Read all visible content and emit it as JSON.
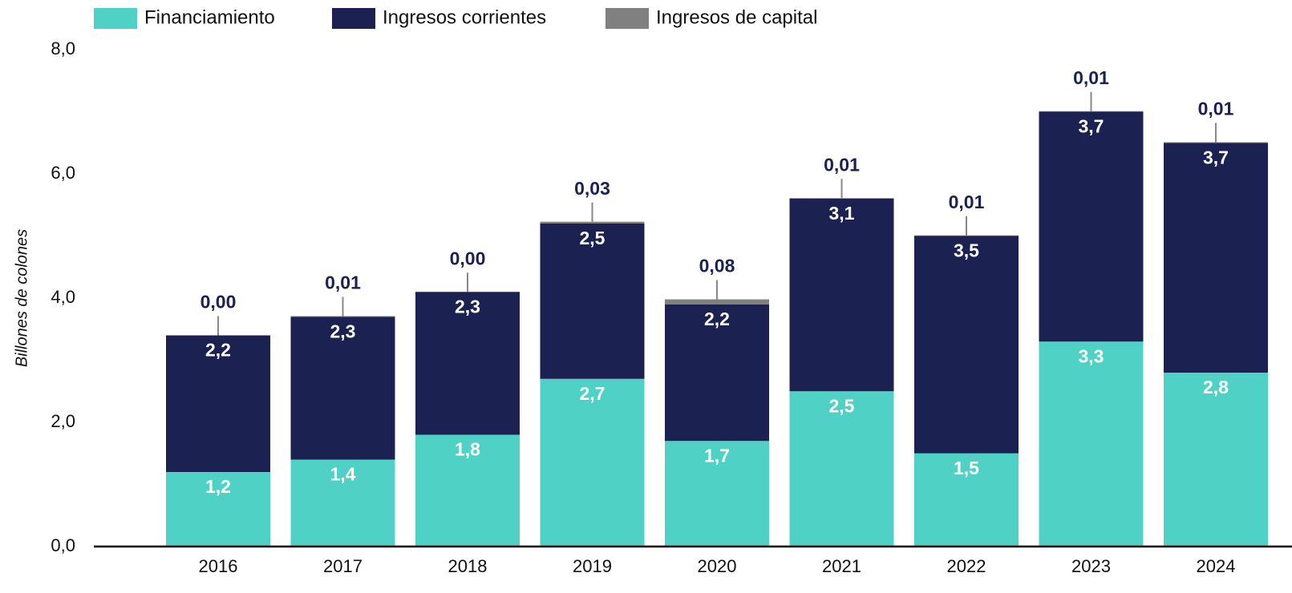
{
  "chart_data": {
    "type": "stacked_bar",
    "y_label": "Billones de colones",
    "categories": [
      "2016",
      "2017",
      "2018",
      "2019",
      "2020",
      "2021",
      "2022",
      "2023",
      "2024"
    ],
    "series": [
      {
        "name": "Financiamiento",
        "color": "#4fd1c5",
        "values": [
          1.2,
          1.4,
          1.8,
          2.7,
          1.7,
          2.5,
          1.5,
          3.3,
          2.8
        ],
        "value_labels": [
          "1,2",
          "1,4",
          "1,8",
          "2,7",
          "1,7",
          "2,5",
          "1,5",
          "3,3",
          "2,8"
        ]
      },
      {
        "name": "Ingresos corrientes",
        "color": "#1b2150",
        "values": [
          2.2,
          2.3,
          2.3,
          2.5,
          2.2,
          3.1,
          3.5,
          3.7,
          3.7
        ],
        "value_labels": [
          "2,2",
          "2,3",
          "2,3",
          "2,5",
          "2,2",
          "3,1",
          "3,5",
          "3,7",
          "3,7"
        ]
      },
      {
        "name": "Ingresos de capital",
        "color": "#808080",
        "values": [
          0.0,
          0.01,
          0.0,
          0.03,
          0.08,
          0.01,
          0.01,
          0.01,
          0.01
        ],
        "value_labels": [
          "0,00",
          "0,01",
          "0,00",
          "0,03",
          "0,08",
          "0,01",
          "0,01",
          "0,01",
          "0,01"
        ]
      }
    ],
    "ylim": [
      0,
      8
    ],
    "yticks": [
      {
        "value": 0,
        "label": "0,0"
      },
      {
        "value": 2,
        "label": "2,0"
      },
      {
        "value": 4,
        "label": "4,0"
      },
      {
        "value": 6,
        "label": "6,0"
      },
      {
        "value": 8,
        "label": "8,0"
      }
    ],
    "legend": "top"
  }
}
